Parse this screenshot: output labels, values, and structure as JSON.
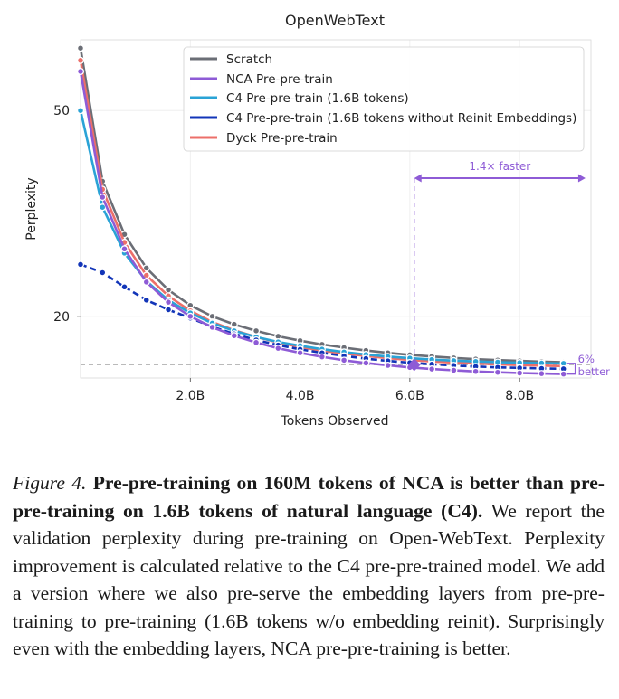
{
  "chart_data": {
    "type": "line",
    "title": "OpenWebText",
    "xlabel": "Tokens Observed",
    "ylabel": "Perplexity",
    "yscale": "log",
    "xlim": [
      0.0,
      9.3
    ],
    "ylim": [
      15.2,
      68.5
    ],
    "x_ticks": [
      2.0,
      4.0,
      6.0,
      8.0
    ],
    "x_tick_labels": [
      "2.0B",
      "4.0B",
      "6.0B",
      "8.0B"
    ],
    "y_ticks": [
      20,
      50
    ],
    "y_tick_labels": [
      "20",
      "50"
    ],
    "grid": true,
    "legend_position": "top-right",
    "x": [
      0.0,
      0.4,
      0.8,
      1.2,
      1.6,
      2.0,
      2.4,
      2.8,
      3.2,
      3.6,
      4.0,
      4.4,
      4.8,
      5.2,
      5.6,
      6.0,
      6.4,
      6.8,
      7.2,
      7.6,
      8.0,
      8.4,
      8.8
    ],
    "series": [
      {
        "name": "Scratch",
        "color": "#6b6e76",
        "values": [
          66.0,
          36.5,
          28.8,
          24.8,
          22.5,
          21.0,
          20.0,
          19.3,
          18.75,
          18.3,
          17.95,
          17.65,
          17.4,
          17.18,
          17.0,
          16.85,
          16.73,
          16.62,
          16.53,
          16.46,
          16.4,
          16.35,
          16.3
        ]
      },
      {
        "name": "NCA Pre-pre-train",
        "color": "#8e5bd6",
        "values": [
          59.5,
          34.0,
          27.0,
          23.3,
          21.3,
          20.0,
          19.05,
          18.35,
          17.8,
          17.35,
          17.0,
          16.7,
          16.45,
          16.25,
          16.08,
          15.93,
          15.82,
          15.73,
          15.65,
          15.59,
          15.54,
          15.5,
          15.47
        ]
      },
      {
        "name": "C4 Pre-pre-train (1.6B tokens)",
        "color": "#2aa3d6",
        "values": [
          50.0,
          32.5,
          26.5,
          23.4,
          21.5,
          20.3,
          19.4,
          18.75,
          18.25,
          17.85,
          17.55,
          17.28,
          17.06,
          16.87,
          16.72,
          16.6,
          16.5,
          16.42,
          16.36,
          16.31,
          16.27,
          16.24,
          16.22
        ]
      },
      {
        "name": "C4 Pre-pre-train (1.6B tokens without Reinit Embeddings)",
        "color": "#1235b8",
        "values": [
          25.2,
          24.3,
          22.8,
          21.5,
          20.6,
          19.85,
          19.1,
          18.5,
          18.0,
          17.6,
          17.27,
          17.0,
          16.77,
          16.57,
          16.4,
          16.27,
          16.16,
          16.07,
          16.0,
          15.94,
          15.9,
          15.86,
          15.83
        ]
      },
      {
        "name": "Dyck Pre-pre-train",
        "color": "#ec6f6a",
        "values": [
          62.5,
          35.2,
          27.8,
          24.0,
          21.9,
          20.5,
          19.5,
          18.8,
          18.25,
          17.8,
          17.45,
          17.17,
          16.95,
          16.76,
          16.6,
          16.47,
          16.36,
          16.28,
          16.21,
          16.15,
          16.1,
          16.06,
          16.03
        ]
      }
    ],
    "annotations": {
      "faster_label": "1.4× faster",
      "faster_arrow_x": [
        6.08,
        9.2
      ],
      "faster_arrow_y": 37.0,
      "reference_x": 6.08,
      "reference_y": 16.12,
      "better_label_line1": "6%",
      "better_label_line2": "better"
    }
  },
  "caption": {
    "label": "Figure 4.",
    "bold": "Pre-pre-training on 160M tokens of NCA is better than pre-pre-training on 1.6B tokens of natural language (C4).",
    "text": "We report the validation perplexity during pre-training on Open-WebText.  Perplexity improvement is calculated relative to the C4 pre-pre-trained model. We add a version where we also pre-serve the embedding layers from pre-pre-training to pre-training (1.6B tokens w/o embedding reinit). Surprisingly even with the embedding layers, NCA pre-pre-training is better."
  }
}
